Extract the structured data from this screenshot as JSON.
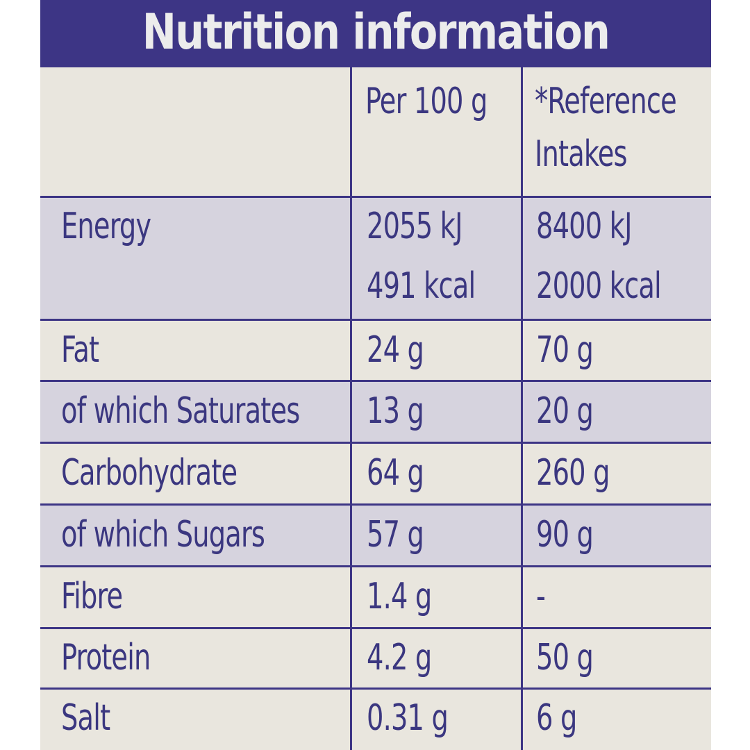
{
  "title": "Nutrition information",
  "columns": {
    "per100": "Per 100 g",
    "ri_line1": "*Reference",
    "ri_line2": "Intakes"
  },
  "energy": {
    "label": "Energy",
    "per100_kj": "2055 kJ",
    "per100_kcal": "491 kcal",
    "ri_kj": "8400 kJ",
    "ri_kcal": "2000 kcal"
  },
  "rows": [
    {
      "label": "Fat",
      "per100": "24 g",
      "ri": "70 g"
    },
    {
      "label": "of which Saturates",
      "per100": "13 g",
      "ri": "20 g"
    },
    {
      "label": "Carbohydrate",
      "per100": "64 g",
      "ri": "260 g"
    },
    {
      "label": "of which Sugars",
      "per100": "57 g",
      "ri": "90 g"
    },
    {
      "label": "Fibre",
      "per100": "1.4 g",
      "ri": "-"
    },
    {
      "label": "Protein",
      "per100": "4.2 g",
      "ri": "50 g"
    },
    {
      "label": "Salt",
      "per100": "0.31 g",
      "ri": "6 g"
    }
  ],
  "colors": {
    "ink": "#3b3780",
    "header_bg": "#3d3585",
    "panel_bg": "#e9e6de",
    "shade_bg": "#d6d3de"
  }
}
